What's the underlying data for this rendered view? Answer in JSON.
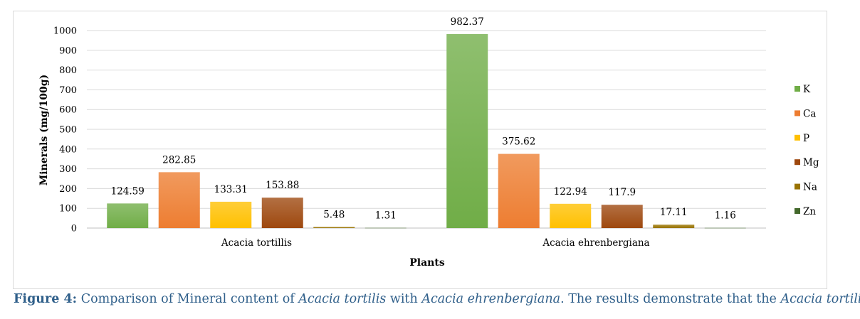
{
  "chart_data": {
    "type": "bar",
    "categories": [
      "Acacia tortillis",
      "Acacia ehrenbergiana"
    ],
    "series": [
      {
        "name": "K",
        "color": "#70ad47",
        "values": [
          124.59,
          982.37
        ],
        "labels": [
          "124.59",
          "982.37"
        ]
      },
      {
        "name": "Ca",
        "color": "#ed7d31",
        "values": [
          282.85,
          375.62
        ],
        "labels": [
          "282.85",
          "375.62"
        ]
      },
      {
        "name": "P",
        "color": "#ffc000",
        "values": [
          133.31,
          122.94
        ],
        "labels": [
          "133.31",
          "122.94"
        ]
      },
      {
        "name": "Mg",
        "color": "#9e480e",
        "values": [
          153.88,
          117.9
        ],
        "labels": [
          "153.88",
          "117.9"
        ]
      },
      {
        "name": "Na",
        "color": "#997300",
        "values": [
          5.48,
          17.11
        ],
        "labels": [
          "5.48",
          "17.11"
        ]
      },
      {
        "name": "Zn",
        "color": "#43682b",
        "values": [
          1.31,
          1.16
        ],
        "labels": [
          "1.31",
          "1.16"
        ]
      }
    ],
    "xlabel": "Plants",
    "ylabel": "Minerals (mg/100g)",
    "ylim": [
      0,
      1000
    ],
    "yticks": [
      "0",
      "100",
      "200",
      "300",
      "400",
      "500",
      "600",
      "700",
      "800",
      "900",
      "1000"
    ],
    "grid": true,
    "legend_position": "right"
  },
  "caption": {
    "figure_label": "Figure 4:",
    "part1": " Comparison of Mineral content of ",
    "species1": "Acacia tortilis",
    "part2": " with ",
    "species2": "Acacia ehrenbergiana",
    "part3": ". The results demonstrate that the ",
    "species3": "Acacia tortilis"
  }
}
